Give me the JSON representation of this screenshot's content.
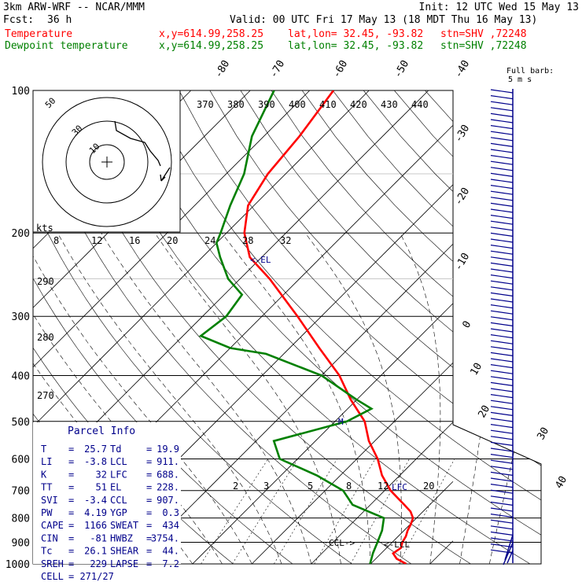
{
  "header": {
    "model": "3km ARW-WRF -- NCAR/MMM",
    "init": "Init: 12 UTC Wed 15 May 13",
    "fcst_label": "Fcst:",
    "fcst_value": "36 h",
    "valid": "Valid: 00 UTC Fri 17 May 13 (18 MDT Thu 16 May 13)",
    "temp_line": {
      "name": "Temperature",
      "xy": "x,y=614.99,258.25",
      "latlon": "lat,lon= 32.45, -93.82",
      "stn": "stn=SHV ,72248"
    },
    "dew_line": {
      "name": "Dewpoint temperature",
      "xy": "x,y=614.99,258.25",
      "latlon": "lat,lon= 32.45, -93.82",
      "stn": "stn=SHV ,72248"
    }
  },
  "colors": {
    "temperature": "#ff0000",
    "dewpoint": "#008000",
    "labels": "#00008b",
    "grid": "#000000"
  },
  "chart_data": {
    "type": "line",
    "pressure_axis": {
      "ticks": [
        100,
        200,
        300,
        400,
        500,
        600,
        700,
        800,
        900,
        1000
      ],
      "scale": "log"
    },
    "isotherm_labels": [
      "-80",
      "-70",
      "-60",
      "-50",
      "-40",
      "-30",
      "-20",
      "-10",
      "0",
      "10",
      "20",
      "30",
      "40"
    ],
    "theta_labels": [
      "370",
      "380",
      "390",
      "400",
      "410",
      "420",
      "430",
      "440"
    ],
    "theta_low_labels": [
      "290",
      "280",
      "270"
    ],
    "mixing_ratio_labels": [
      "2",
      "3",
      "5",
      "8",
      "12",
      "20"
    ],
    "hodo_speed_labels": [
      "8",
      "12",
      "16",
      "20",
      "24",
      "28",
      "32"
    ],
    "hodo_units": "kts",
    "hodo_ring_labels": [
      "50",
      "30",
      "10"
    ],
    "barb_legend": {
      "line1": "Full barb:",
      "line2": "5 m s"
    },
    "levels_labels": {
      "el": "<-EL",
      "lfc": "LFC",
      "ccl": "CCL->",
      "lcl": "<-LCL",
      "m": "M"
    },
    "series": [
      {
        "name": "Temperature",
        "points": [
          [
            1000,
            26
          ],
          [
            975,
            23.5
          ],
          [
            950,
            22
          ],
          [
            925,
            22.4
          ],
          [
            900,
            21.7
          ],
          [
            875,
            21.3
          ],
          [
            850,
            20.6
          ],
          [
            825,
            20.1
          ],
          [
            800,
            19.4
          ],
          [
            775,
            17.9
          ],
          [
            750,
            15.7
          ],
          [
            700,
            11
          ],
          [
            650,
            7
          ],
          [
            600,
            3.5
          ],
          [
            550,
            -1
          ],
          [
            500,
            -5
          ],
          [
            450,
            -11
          ],
          [
            400,
            -17
          ],
          [
            350,
            -25
          ],
          [
            300,
            -34
          ],
          [
            250,
            -45
          ],
          [
            225,
            -52
          ],
          [
            200,
            -57
          ],
          [
            175,
            -61
          ],
          [
            150,
            -63
          ],
          [
            125,
            -64
          ],
          [
            100,
            -66
          ]
        ]
      },
      {
        "name": "Dewpoint temperature",
        "points": [
          [
            1000,
            19.9
          ],
          [
            950,
            18.6
          ],
          [
            900,
            17.5
          ],
          [
            850,
            16.3
          ],
          [
            800,
            14.5
          ],
          [
            750,
            7
          ],
          [
            700,
            3
          ],
          [
            650,
            -4
          ],
          [
            600,
            -13
          ],
          [
            550,
            -17
          ],
          [
            500,
            -8
          ],
          [
            470,
            -6
          ],
          [
            450,
            -10
          ],
          [
            400,
            -20
          ],
          [
            360,
            -33
          ],
          [
            350,
            -40
          ],
          [
            330,
            -47
          ],
          [
            300,
            -46
          ],
          [
            270,
            -47
          ],
          [
            250,
            -52
          ],
          [
            225,
            -57
          ],
          [
            210,
            -60
          ],
          [
            200,
            -61
          ],
          [
            175,
            -64
          ],
          [
            150,
            -67
          ],
          [
            125,
            -72
          ],
          [
            100,
            -76
          ]
        ]
      }
    ]
  },
  "parcel_info": {
    "title": "Parcel Info",
    "rows": [
      {
        "k1": "T",
        "v1": "25.7",
        "k2": "Td",
        "v2": "19.9"
      },
      {
        "k1": "LI",
        "v1": "-3.8",
        "k2": "LCL",
        "v2": "911."
      },
      {
        "k1": "K",
        "v1": "32",
        "k2": "LFC",
        "v2": "688."
      },
      {
        "k1": "TT",
        "v1": "51",
        "k2": "EL",
        "v2": "228."
      },
      {
        "k1": "SVI",
        "v1": "-3.4",
        "k2": "CCL",
        "v2": "907."
      },
      {
        "k1": "PW",
        "v1": "4.19",
        "k2": "YGP",
        "v2": "0.3"
      },
      {
        "k1": "CAPE",
        "v1": "1166",
        "k2": "SWEAT",
        "v2": "434"
      },
      {
        "k1": "CIN",
        "v1": "-81",
        "k2": "HWBZ",
        "v2": "3754."
      },
      {
        "k1": "Tc",
        "v1": "26.1",
        "k2": "SHEAR",
        "v2": "44."
      },
      {
        "k1": "SREH",
        "v1": "229",
        "k2": "LAPSE",
        "v2": "7.2"
      },
      {
        "k1": "CELL",
        "v1": "271/27",
        "k2": "",
        "v2": ""
      }
    ]
  }
}
